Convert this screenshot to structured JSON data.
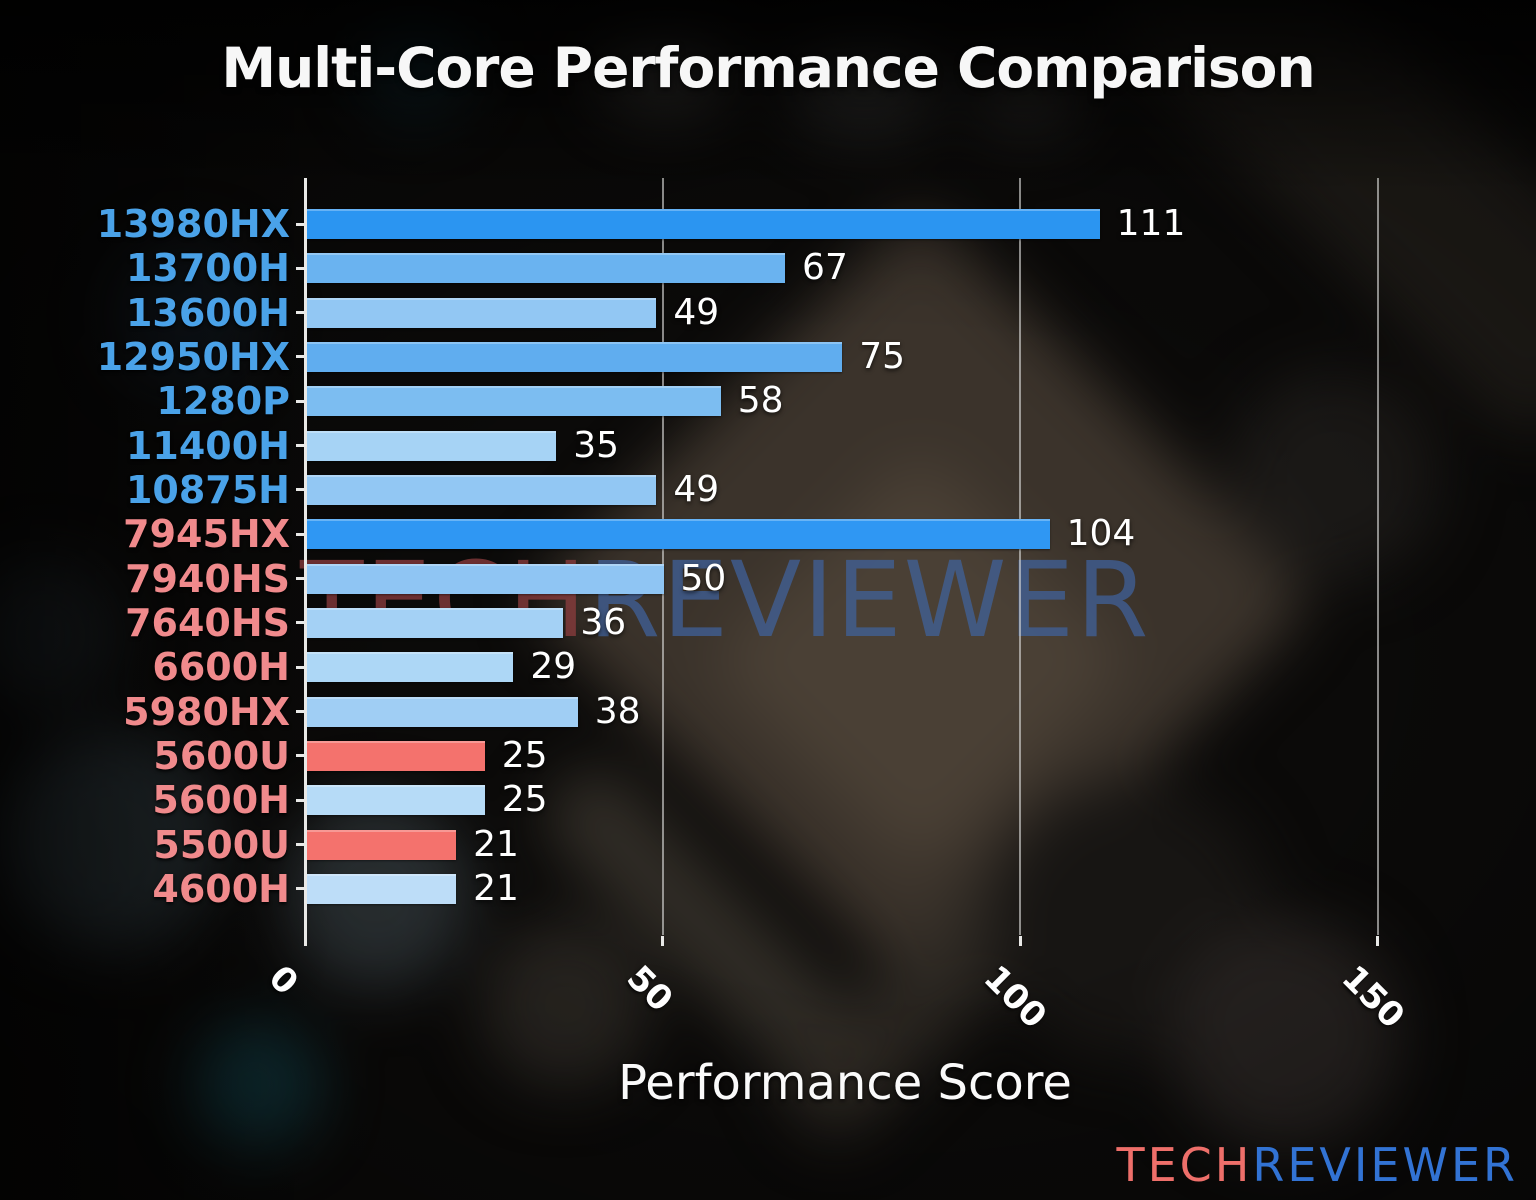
{
  "title": "Multi-Core Performance Comparison",
  "x_axis": {
    "label": "Performance Score"
  },
  "watermark": {
    "tech": "TECH",
    "reviewer": "REVIEWER"
  },
  "brand": {
    "tech": "TECH",
    "reviewer": "REVIEWER",
    "tech_color": "#ee6f6a",
    "reviewer_color": "#3273d4"
  },
  "colors": {
    "intel_label": "#4aa2e8",
    "amd_label": "#f08a8c",
    "axis": "#e9e9e7",
    "gridline": "#d8d8d6",
    "value_label": "#ffffff",
    "title": "#f7f7f7"
  },
  "chart_data": {
    "type": "bar",
    "orientation": "horizontal",
    "title": "Multi-Core Performance Comparison",
    "xlabel": "Performance Score",
    "xlim": [
      0,
      172
    ],
    "xticks": [
      0,
      50,
      100,
      150
    ],
    "grid": true,
    "legend": "none",
    "categories": [
      "13980HX",
      "13700H",
      "13600H",
      "12950HX",
      "1280P",
      "11400H",
      "10875H",
      "7945HX",
      "7940HS",
      "7640HS",
      "6600H",
      "5980HX",
      "5600U",
      "5600H",
      "5500U",
      "4600H"
    ],
    "values": [
      111,
      67,
      49,
      75,
      58,
      35,
      49,
      104,
      50,
      36,
      29,
      38,
      25,
      25,
      21,
      21
    ],
    "items": [
      {
        "label": "13980HX",
        "value": 111,
        "vendor": "intel",
        "bar_color": "#2b95f1",
        "highlight": true
      },
      {
        "label": "13700H",
        "value": 67,
        "vendor": "intel",
        "bar_color": "#6ab3f0",
        "highlight": false
      },
      {
        "label": "13600H",
        "value": 49,
        "vendor": "intel",
        "bar_color": "#92c7f3",
        "highlight": false
      },
      {
        "label": "12950HX",
        "value": 75,
        "vendor": "intel",
        "bar_color": "#60adef",
        "highlight": false
      },
      {
        "label": "1280P",
        "value": 58,
        "vendor": "intel",
        "bar_color": "#7cbdf1",
        "highlight": false
      },
      {
        "label": "11400H",
        "value": 35,
        "vendor": "intel",
        "bar_color": "#a6d3f5",
        "highlight": false
      },
      {
        "label": "10875H",
        "value": 49,
        "vendor": "intel",
        "bar_color": "#92c7f3",
        "highlight": false
      },
      {
        "label": "7945HX",
        "value": 104,
        "vendor": "amd",
        "bar_color": "#2f97f3",
        "highlight": true
      },
      {
        "label": "7940HS",
        "value": 50,
        "vendor": "amd",
        "bar_color": "#8fc5f3",
        "highlight": false
      },
      {
        "label": "7640HS",
        "value": 36,
        "vendor": "amd",
        "bar_color": "#a4d1f5",
        "highlight": false
      },
      {
        "label": "6600H",
        "value": 29,
        "vendor": "amd",
        "bar_color": "#add7f6",
        "highlight": false
      },
      {
        "label": "5980HX",
        "value": 38,
        "vendor": "amd",
        "bar_color": "#a0cef4",
        "highlight": false
      },
      {
        "label": "5600U",
        "value": 25,
        "vendor": "amd",
        "bar_color": "#f4726d",
        "highlight": true
      },
      {
        "label": "5600H",
        "value": 25,
        "vendor": "amd",
        "bar_color": "#b6dbf7",
        "highlight": false
      },
      {
        "label": "5500U",
        "value": 21,
        "vendor": "amd",
        "bar_color": "#f4726d",
        "highlight": true
      },
      {
        "label": "4600H",
        "value": 21,
        "vendor": "amd",
        "bar_color": "#bdddf8",
        "highlight": false
      }
    ]
  }
}
